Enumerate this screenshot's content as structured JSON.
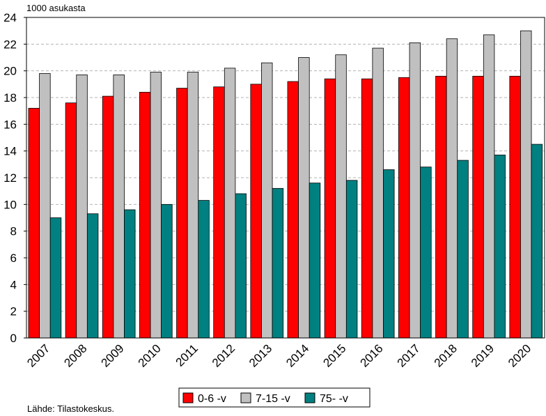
{
  "chart_data": {
    "type": "bar",
    "unit_label": "1000 asukasta",
    "source": "Lähde: Tilastokeskus.",
    "categories": [
      "2007",
      "2008",
      "2009",
      "2010",
      "2011",
      "2012",
      "2013",
      "2014",
      "2015",
      "2016",
      "2017",
      "2018",
      "2019",
      "2020"
    ],
    "series": [
      {
        "name": "0-6 -v",
        "color": "#ff0000",
        "values": [
          17.2,
          17.6,
          18.1,
          18.4,
          18.7,
          18.8,
          19.0,
          19.2,
          19.4,
          19.4,
          19.5,
          19.6,
          19.6,
          19.6
        ]
      },
      {
        "name": "7-15 -v",
        "color": "#c0c0c0",
        "values": [
          19.8,
          19.7,
          19.7,
          19.9,
          19.9,
          20.2,
          20.6,
          21.0,
          21.2,
          21.7,
          22.1,
          22.4,
          22.7,
          23.0
        ]
      },
      {
        "name": "75- -v",
        "color": "#008080",
        "values": [
          9.0,
          9.3,
          9.6,
          10.0,
          10.3,
          10.8,
          11.2,
          11.6,
          11.8,
          12.6,
          12.8,
          13.3,
          13.7,
          14.5
        ]
      }
    ],
    "ylim": [
      0,
      24
    ],
    "yticks": [
      "0",
      "2",
      "4",
      "6",
      "8",
      "10",
      "12",
      "14",
      "16",
      "18",
      "20",
      "22",
      "24"
    ],
    "grid": true,
    "legend_position": "bottom-center"
  }
}
